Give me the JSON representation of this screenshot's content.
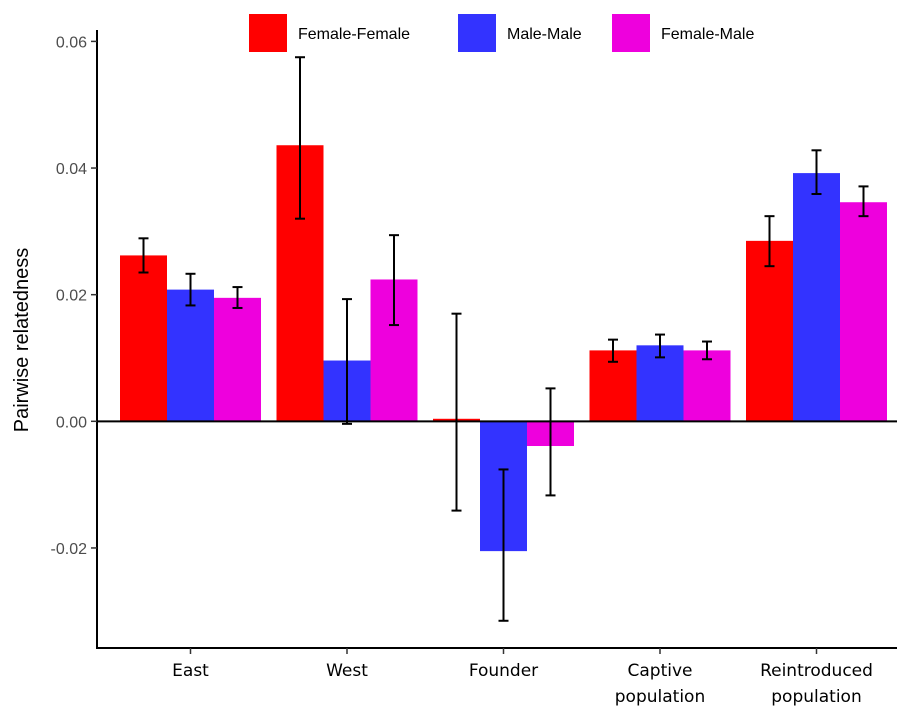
{
  "chart_data": {
    "type": "bar",
    "categories": [
      "East",
      "West",
      "Founder",
      "Captive population",
      "Reintroduced population"
    ],
    "category_lines": [
      [
        "East"
      ],
      [
        "West"
      ],
      [
        "Founder"
      ],
      [
        "Captive",
        "population"
      ],
      [
        "Reintroduced",
        "population"
      ]
    ],
    "series": [
      {
        "name": "Female-Female",
        "color": "#ff0000",
        "values": [
          0.0262,
          0.0436,
          0.0004,
          0.0112,
          0.0285
        ],
        "err_low": [
          0.0235,
          0.032,
          -0.0141,
          0.0094,
          0.0245
        ],
        "err_high": [
          0.0289,
          0.0575,
          0.017,
          0.0129,
          0.0324
        ]
      },
      {
        "name": "Male-Male",
        "color": "#3333ff",
        "values": [
          0.0208,
          0.0096,
          -0.0205,
          0.012,
          0.0392
        ],
        "err_low": [
          0.0183,
          -0.0004,
          -0.0315,
          0.0101,
          0.0359
        ],
        "err_high": [
          0.0233,
          0.0193,
          -0.0076,
          0.0137,
          0.0428
        ]
      },
      {
        "name": "Female-Male",
        "color": "#ee00dd",
        "values": [
          0.0195,
          0.0224,
          -0.0039,
          0.0112,
          0.0346
        ],
        "err_low": [
          0.0179,
          0.0152,
          -0.0117,
          0.0098,
          0.0324
        ],
        "err_high": [
          0.0212,
          0.0294,
          0.0052,
          0.0126,
          0.0371
        ]
      }
    ],
    "ylabel": "Pairwise relatedness",
    "xlabel": "",
    "yticks": [
      "0.06",
      "0.04",
      "0.02",
      "0.00",
      "-0.02"
    ],
    "ytick_values": [
      0.06,
      0.04,
      0.02,
      0.0,
      -0.02
    ],
    "ylim": [
      -0.0358,
      0.0618
    ],
    "legend_position": "top",
    "grid": false
  }
}
